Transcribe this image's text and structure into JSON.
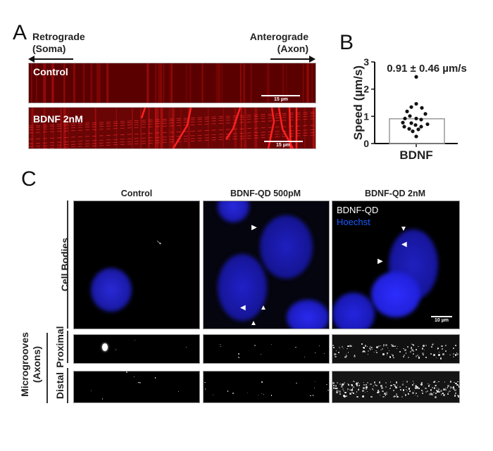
{
  "panel_a": {
    "label": "A",
    "left_direction": {
      "line1": "Retrograde",
      "line2": "(Soma)"
    },
    "right_direction": {
      "line1": "Anterograde",
      "line2": "(Axon)"
    },
    "kymographs": [
      {
        "label": "Control",
        "scale_bar": "15 µm"
      },
      {
        "label": "BDNF 2nM",
        "scale_bar": "15 µm"
      }
    ]
  },
  "panel_b": {
    "label": "B"
  },
  "chart_data": {
    "type": "bar",
    "title": "0.91 ± 0.46 µm/s",
    "ylabel": "Speed (µm/s)",
    "xlabel": "",
    "categories": [
      "BDNF"
    ],
    "values": [
      0.91
    ],
    "ylim": [
      0,
      3
    ],
    "yticks": [
      "0",
      "1",
      "2",
      "3"
    ],
    "points": [
      2.45,
      1.46,
      1.34,
      1.31,
      1.18,
      1.09,
      1.01,
      0.92,
      0.92,
      0.88,
      0.77,
      0.75,
      0.71,
      0.68,
      0.62,
      0.62,
      0.54,
      0.52,
      0.45,
      0.26
    ],
    "grid": false,
    "bar_color": "#999999",
    "point_color": "#111111"
  },
  "panel_c": {
    "label": "C",
    "columns": [
      "Control",
      "BDNF-QD 500pM",
      "BDNF-QD 2nM"
    ],
    "legend": {
      "item1": "BDNF-QD",
      "item2": "Hoechst",
      "item1_color": "#ffffff",
      "item2_color": "#1a5cff"
    },
    "scale_bar": "10 µm",
    "rows": {
      "cell_bodies": "Cell Bodies",
      "group": "Microgrooves",
      "group_sub": "(Axons)",
      "proximal": "Proximal",
      "distal": "Distal"
    }
  }
}
